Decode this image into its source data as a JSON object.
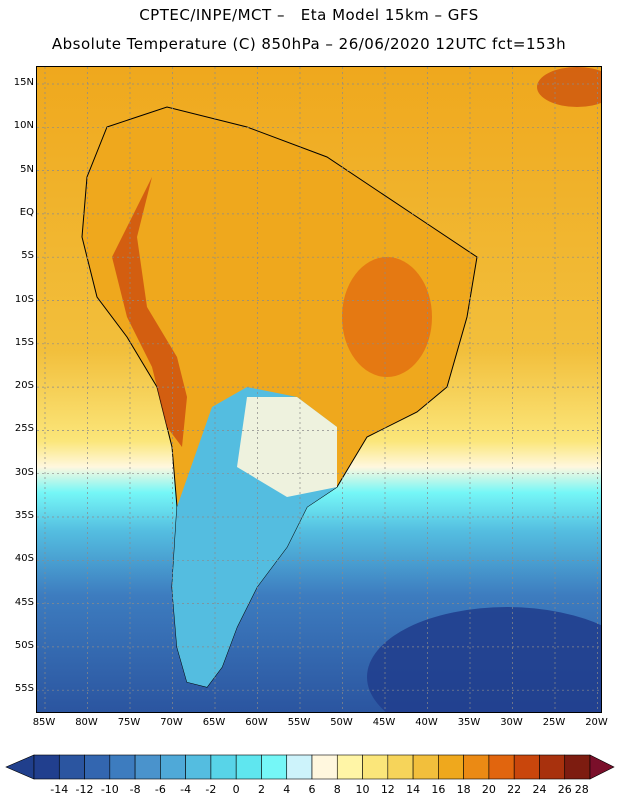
{
  "header": {
    "title_line1": "CPTEC/INPE/MCT –   Eta Model 15km – GFS",
    "title_line2": "Absolute Temperature (C) 850hPa – 26/06/2020 12UTC fct=153h"
  },
  "map": {
    "lat_labels": [
      "15N",
      "10N",
      "5N",
      "EQ",
      "5S",
      "10S",
      "15S",
      "20S",
      "25S",
      "30S",
      "35S",
      "40S",
      "45S",
      "50S",
      "55S"
    ],
    "lon_labels": [
      "85W",
      "80W",
      "75W",
      "70W",
      "65W",
      "60W",
      "55W",
      "50W",
      "45W",
      "40W",
      "35W",
      "30W",
      "25W",
      "20W"
    ],
    "lat_range": [
      -58,
      16.5
    ],
    "lon_range": [
      -85.5,
      -20.5
    ],
    "regions": [
      {
        "name": "equatorial-warm-belt",
        "value_c": 18
      },
      {
        "name": "atlantic-warm-zone",
        "value_c": 16
      },
      {
        "name": "andes-cool-strip",
        "value_c": 8
      },
      {
        "name": "patagonia-cold-zone",
        "value_c": 2
      },
      {
        "name": "south-atlantic-cold-zone",
        "value_c": -6
      }
    ]
  },
  "colorbar": {
    "labels": [
      "-14",
      "-12",
      "-10",
      "-8",
      "-6",
      "-4",
      "-2",
      "0",
      "2",
      "4",
      "6",
      "8",
      "10",
      "12",
      "14",
      "16",
      "18",
      "20",
      "22",
      "24",
      "26",
      "28"
    ],
    "colors": [
      "#213f8e",
      "#2b55a0",
      "#3366b0",
      "#3d7cbf",
      "#4a93cc",
      "#4fa9d8",
      "#54bde0",
      "#58d4e8",
      "#5fe6ef",
      "#75f7f7",
      "#cdf3fb",
      "#fff7de",
      "#fff5a6",
      "#fbe67a",
      "#f6d45a",
      "#f2bf3c",
      "#efa81d",
      "#eb8a14",
      "#e1650e",
      "#c9460c",
      "#a8310d",
      "#7d1c10"
    ],
    "under_color": "#203f8c",
    "over_color": "#7a0f2a"
  }
}
